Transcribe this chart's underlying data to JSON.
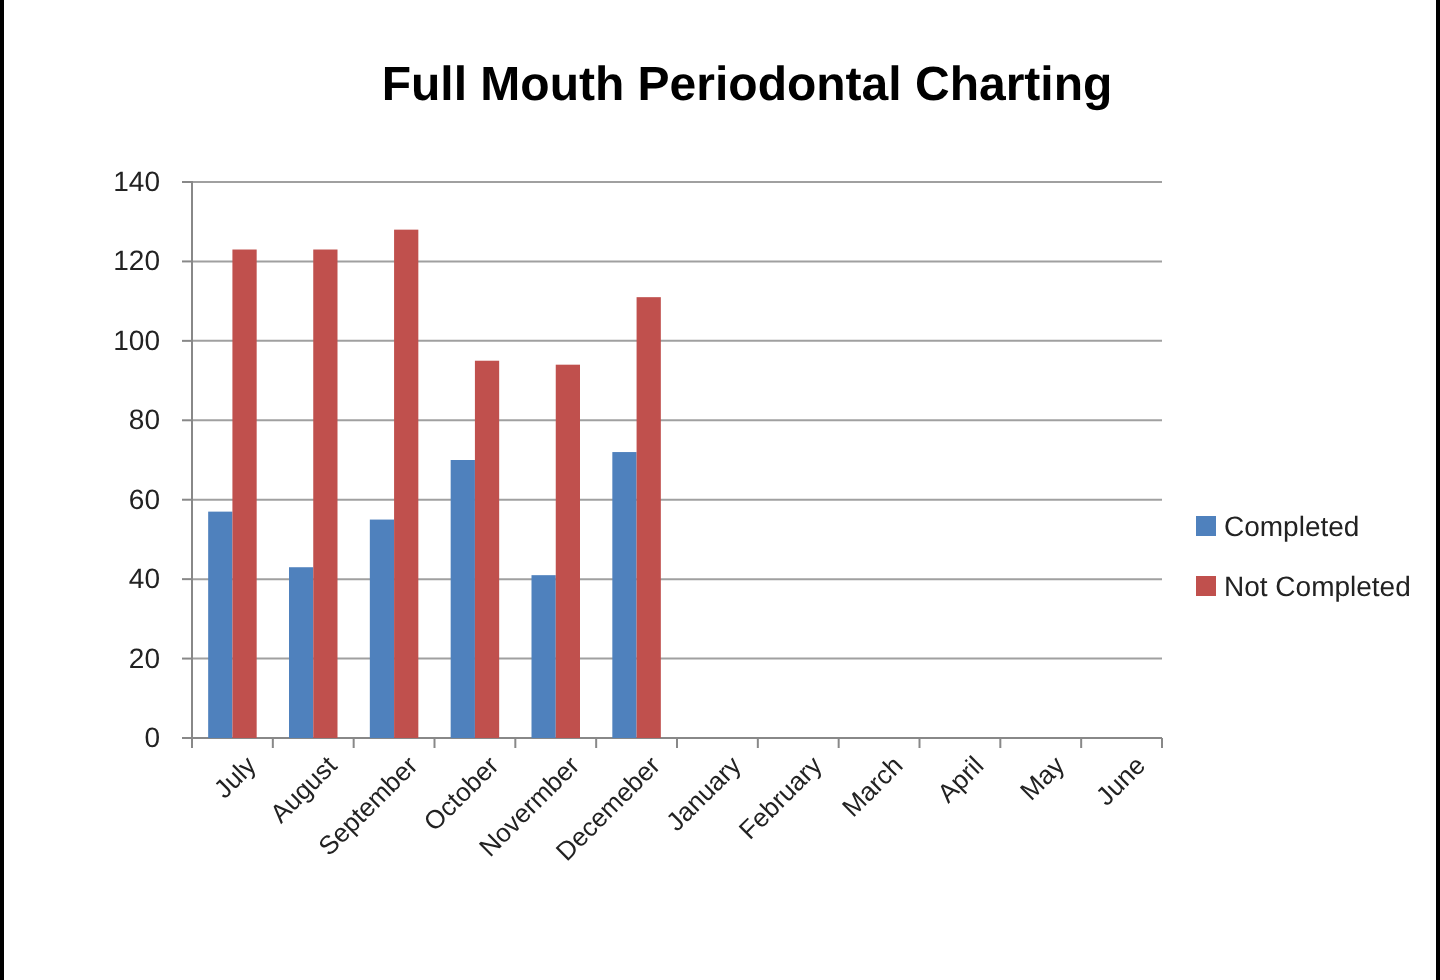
{
  "chart_data": {
    "type": "bar",
    "title": "Full Mouth Periodontal Charting",
    "categories": [
      "July",
      "August",
      "September",
      "October",
      "Novermber",
      "Decemeber",
      "January",
      "February",
      "March",
      "April",
      "May",
      "June"
    ],
    "series": [
      {
        "name": "Completed",
        "color": "#4f81bd",
        "values": [
          57,
          43,
          55,
          70,
          41,
          72,
          null,
          null,
          null,
          null,
          null,
          null
        ]
      },
      {
        "name": "Not Completed",
        "color": "#c0504d",
        "values": [
          123,
          123,
          128,
          95,
          94,
          111,
          null,
          null,
          null,
          null,
          null,
          null
        ]
      }
    ],
    "ylim": [
      0,
      140
    ],
    "yticks": [
      0,
      20,
      40,
      60,
      80,
      100,
      120,
      140
    ],
    "grid": "y",
    "legend": "right"
  }
}
